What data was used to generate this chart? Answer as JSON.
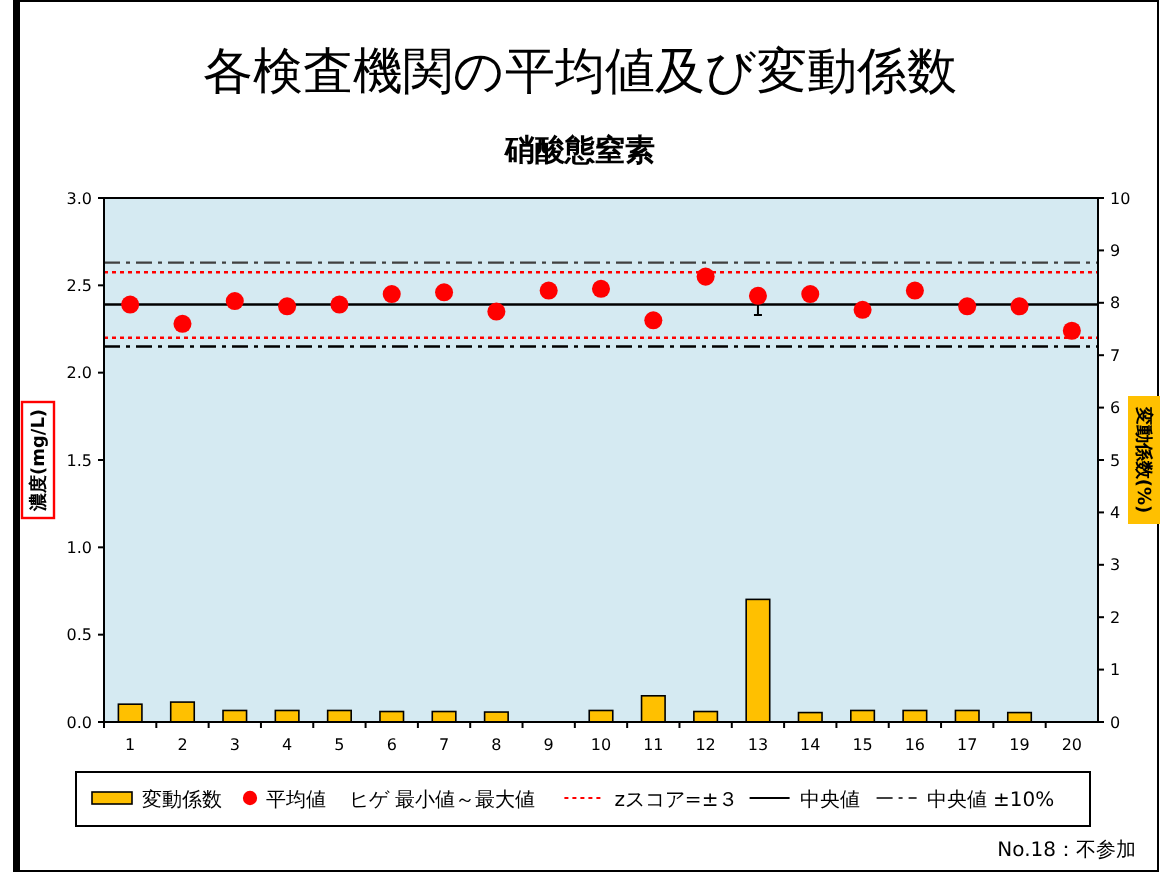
{
  "chart_data": {
    "type": "bar",
    "title": "各検査機関の平均値及び変動係数",
    "subtitle": "硝酸態窒素",
    "ylabel": "濃度(mg/L)",
    "y2label": "変動係数(%)",
    "categories": [
      "1",
      "2",
      "3",
      "4",
      "5",
      "6",
      "7",
      "8",
      "9",
      "10",
      "11",
      "12",
      "13",
      "14",
      "15",
      "16",
      "17",
      "19",
      "20"
    ],
    "series": [
      {
        "name": "変動係数",
        "axis": "y2",
        "color": "#ffc000",
        "values": [
          0.34,
          0.38,
          0.22,
          0.22,
          0.22,
          0.2,
          0.2,
          0.19,
          null,
          0.22,
          0.5,
          0.2,
          2.34,
          0.18,
          0.22,
          0.22,
          0.22,
          0.18,
          null
        ]
      },
      {
        "name": "平均値",
        "type": "scatter",
        "color": "#ff0000",
        "marker": "circle",
        "values": [
          2.39,
          2.28,
          2.41,
          2.38,
          2.39,
          2.45,
          2.46,
          2.35,
          2.47,
          2.48,
          2.3,
          2.55,
          2.44,
          2.45,
          2.36,
          2.47,
          2.38,
          2.38,
          2.24
        ],
        "errors": [
          null,
          null,
          null,
          null,
          null,
          null,
          null,
          null,
          null,
          null,
          null,
          null,
          [
            2.33,
            2.44
          ],
          null,
          null,
          null,
          null,
          null,
          null
        ]
      }
    ],
    "ylim": [
      0,
      3
    ],
    "yticks": [
      {
        "value": 0,
        "label": "0.0"
      },
      {
        "value": 0.5,
        "label": "0.5"
      },
      {
        "value": 1,
        "label": "1.0"
      },
      {
        "value": 1.5,
        "label": "1.5"
      },
      {
        "value": 2,
        "label": "2.0"
      },
      {
        "value": 2.5,
        "label": "2.5"
      },
      {
        "value": 3,
        "label": "3.0"
      }
    ],
    "y2lim": [
      0,
      10
    ],
    "y2ticks": [
      0,
      1,
      2,
      3,
      4,
      5,
      6,
      7,
      8,
      9,
      10
    ],
    "ref_lines": [
      {
        "axis": "y",
        "value": 2.63,
        "label": "中央値 ±10%",
        "color": "#404040",
        "line_style": "dashdot"
      },
      {
        "axis": "y",
        "value": 2.575,
        "label": "zスコア=±３",
        "color": "#ff0000",
        "line_style": "dotted"
      },
      {
        "axis": "y",
        "value": 2.39,
        "label": "中央値",
        "color": "#000000",
        "line_style": "solid"
      },
      {
        "axis": "y",
        "value": 2.2,
        "color": "#ff0000",
        "line_style": "dotted"
      },
      {
        "axis": "y",
        "value": 2.15,
        "color": "#000000",
        "line_style": "dashdot"
      }
    ],
    "annotations": [
      "ヒゲ 最小値～最大値",
      "No.18：不参加"
    ],
    "legend": "bottom",
    "grid": false
  }
}
